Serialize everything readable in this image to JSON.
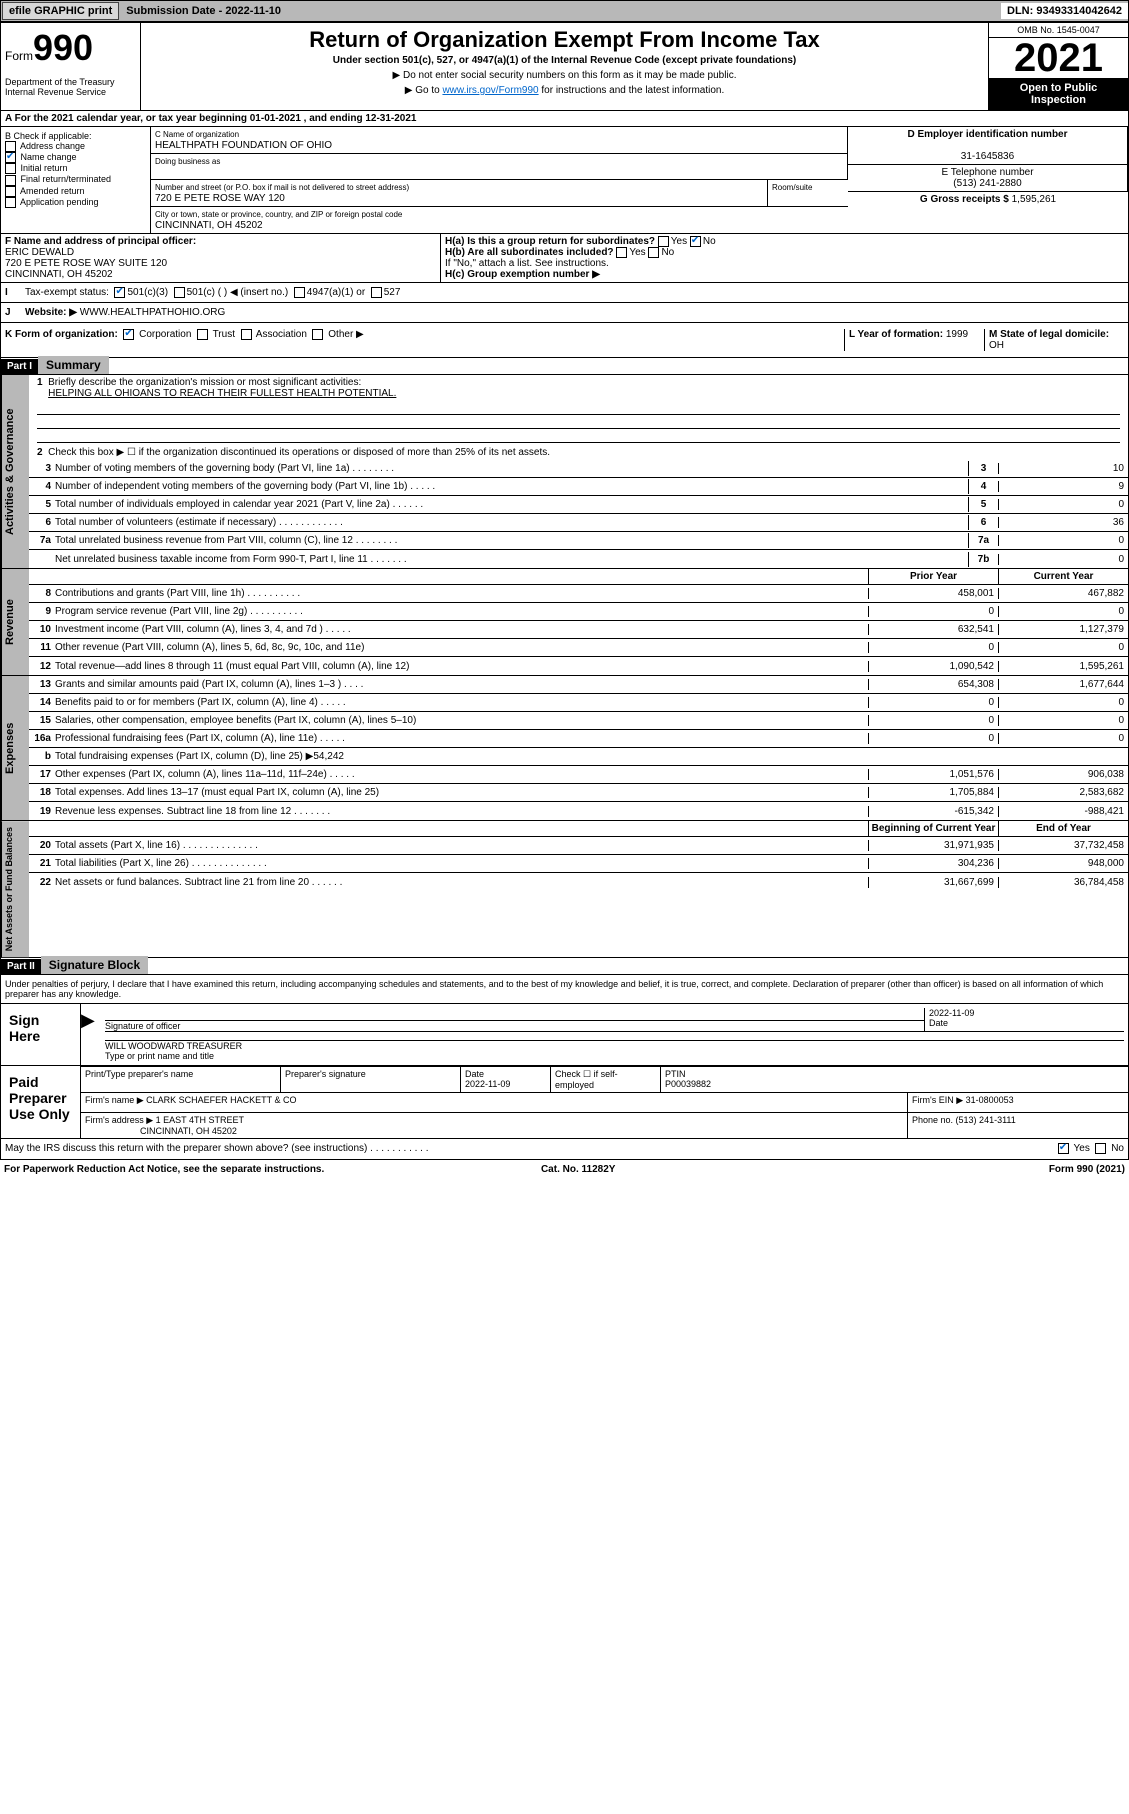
{
  "topbar": {
    "efile": "efile GRAPHIC print",
    "submission": "Submission Date - 2022-11-10",
    "dln": "DLN: 93493314042642"
  },
  "header": {
    "form_prefix": "Form",
    "form_number": "990",
    "title": "Return of Organization Exempt From Income Tax",
    "subtitle": "Under section 501(c), 527, or 4947(a)(1) of the Internal Revenue Code (except private foundations)",
    "note1": "▶ Do not enter social security numbers on this form as it may be made public.",
    "note2_pre": "▶ Go to ",
    "note2_link": "www.irs.gov/Form990",
    "note2_post": " for instructions and the latest information.",
    "dept": "Department of the Treasury\nInternal Revenue Service",
    "omb": "OMB No. 1545-0047",
    "year": "2021",
    "inspect": "Open to Public Inspection"
  },
  "period": {
    "label": "A For the 2021 calendar year, or tax year beginning ",
    "begin": "01-01-2021",
    "mid": " , and ending ",
    "end": "12-31-2021"
  },
  "sectB": {
    "label": "B Check if applicable:",
    "opts": [
      "Address change",
      "Name change",
      "Initial return",
      "Final return/terminated",
      "Amended return",
      "Application pending"
    ],
    "checked": [
      false,
      true,
      false,
      false,
      false,
      false
    ]
  },
  "sectC": {
    "name_lbl": "C Name of organization",
    "name": "HEALTHPATH FOUNDATION OF OHIO",
    "dba_lbl": "Doing business as",
    "addr_lbl": "Number and street (or P.O. box if mail is not delivered to street address)",
    "room_lbl": "Room/suite",
    "addr": "720 E PETE ROSE WAY 120",
    "city_lbl": "City or town, state or province, country, and ZIP or foreign postal code",
    "city": "CINCINNATI, OH  45202"
  },
  "sectD": {
    "ein_lbl": "D Employer identification number",
    "ein": "31-1645836",
    "tel_lbl": "E Telephone number",
    "tel": "(513) 241-2880",
    "gross_lbl": "G Gross receipts $ ",
    "gross": "1,595,261"
  },
  "sectF": {
    "lbl": "F Name and address of principal officer:",
    "name": "ERIC DEWALD",
    "addr1": "720 E PETE ROSE WAY SUITE 120",
    "addr2": "CINCINNATI, OH  45202"
  },
  "sectH": {
    "a_lbl": "H(a)  Is this a group return for subordinates?",
    "a_yes": "Yes",
    "a_no": "No",
    "b_lbl": "H(b)  Are all subordinates included?",
    "b_note": "If \"No,\" attach a list. See instructions.",
    "c_lbl": "H(c)  Group exemption number ▶"
  },
  "tax_status": {
    "lbl": "Tax-exempt status:",
    "opts": [
      "501(c)(3)",
      "501(c) (   ) ◀ (insert no.)",
      "4947(a)(1) or",
      "527"
    ]
  },
  "website": {
    "lbl": "Website: ▶ ",
    "val": "WWW.HEALTHPATHOHIO.ORG"
  },
  "orgform": {
    "lbl": "K Form of organization:",
    "opts": [
      "Corporation",
      "Trust",
      "Association",
      "Other ▶"
    ],
    "year_lbl": "L Year of formation: ",
    "year": "1999",
    "state_lbl": "M State of legal domicile: ",
    "state": "OH"
  },
  "part1": {
    "hdr": "Part I",
    "title": "Summary"
  },
  "summary": {
    "l1": "Briefly describe the organization's mission or most significant activities:",
    "mission": "HELPING ALL OHIOANS TO REACH THEIR FULLEST HEALTH POTENTIAL.",
    "l2": "Check this box ▶ ☐  if the organization discontinued its operations or disposed of more than 25% of its net assets.",
    "rows_gov": [
      {
        "n": "3",
        "t": "Number of voting members of the governing body (Part VI, line 1a)   .    .    .    .    .    .    .    .",
        "b": "3",
        "v": "10"
      },
      {
        "n": "4",
        "t": "Number of independent voting members of the governing body (Part VI, line 1b)   .    .    .    .    .",
        "b": "4",
        "v": "9"
      },
      {
        "n": "5",
        "t": "Total number of individuals employed in calendar year 2021 (Part V, line 2a)   .    .    .    .    .    .",
        "b": "5",
        "v": "0"
      },
      {
        "n": "6",
        "t": "Total number of volunteers (estimate if necessary)   .    .    .    .    .    .    .    .    .    .    .    .",
        "b": "6",
        "v": "36"
      },
      {
        "n": "7a",
        "t": "Total unrelated business revenue from Part VIII, column (C), line 12   .    .    .    .    .    .    .    .",
        "b": "7a",
        "v": "0"
      },
      {
        "n": "",
        "t": "Net unrelated business taxable income from Form 990-T, Part I, line 11   .    .    .    .    .    .    .",
        "b": "7b",
        "v": "0"
      }
    ],
    "col_prior": "Prior Year",
    "col_current": "Current Year",
    "rows_rev": [
      {
        "n": "8",
        "t": "Contributions and grants (Part VIII, line 1h)   .    .    .    .    .    .    .    .    .    .",
        "p": "458,001",
        "c": "467,882"
      },
      {
        "n": "9",
        "t": "Program service revenue (Part VIII, line 2g)   .    .    .    .    .    .    .    .    .    .",
        "p": "0",
        "c": "0"
      },
      {
        "n": "10",
        "t": "Investment income (Part VIII, column (A), lines 3, 4, and 7d )   .    .    .    .    .",
        "p": "632,541",
        "c": "1,127,379"
      },
      {
        "n": "11",
        "t": "Other revenue (Part VIII, column (A), lines 5, 6d, 8c, 9c, 10c, and 11e)",
        "p": "0",
        "c": "0"
      },
      {
        "n": "12",
        "t": "Total revenue—add lines 8 through 11 (must equal Part VIII, column (A), line 12)",
        "p": "1,090,542",
        "c": "1,595,261"
      }
    ],
    "rows_exp": [
      {
        "n": "13",
        "t": "Grants and similar amounts paid (Part IX, column (A), lines 1–3 )   .    .    .    .",
        "p": "654,308",
        "c": "1,677,644"
      },
      {
        "n": "14",
        "t": "Benefits paid to or for members (Part IX, column (A), line 4)   .    .    .    .    .",
        "p": "0",
        "c": "0"
      },
      {
        "n": "15",
        "t": "Salaries, other compensation, employee benefits (Part IX, column (A), lines 5–10)",
        "p": "0",
        "c": "0"
      },
      {
        "n": "16a",
        "t": "Professional fundraising fees (Part IX, column (A), line 11e)   .    .    .    .    .",
        "p": "0",
        "c": "0"
      },
      {
        "n": "b",
        "t": "Total fundraising expenses (Part IX, column (D), line 25) ▶54,242",
        "p": "",
        "c": "",
        "shade": true
      },
      {
        "n": "17",
        "t": "Other expenses (Part IX, column (A), lines 11a–11d, 11f–24e)   .    .    .    .    .",
        "p": "1,051,576",
        "c": "906,038"
      },
      {
        "n": "18",
        "t": "Total expenses. Add lines 13–17 (must equal Part IX, column (A), line 25)",
        "p": "1,705,884",
        "c": "2,583,682"
      },
      {
        "n": "19",
        "t": "Revenue less expenses. Subtract line 18 from line 12   .    .    .    .    .    .    .",
        "p": "-615,342",
        "c": "-988,421"
      }
    ],
    "col_begin": "Beginning of Current Year",
    "col_end": "End of Year",
    "rows_net": [
      {
        "n": "20",
        "t": "Total assets (Part X, line 16)   .    .    .    .    .    .    .    .    .    .    .    .    .    .",
        "p": "31,971,935",
        "c": "37,732,458"
      },
      {
        "n": "21",
        "t": "Total liabilities (Part X, line 26)   .    .    .    .    .    .    .    .    .    .    .    .    .    .",
        "p": "304,236",
        "c": "948,000"
      },
      {
        "n": "22",
        "t": "Net assets or fund balances. Subtract line 21 from line 20   .    .    .    .    .    .",
        "p": "31,667,699",
        "c": "36,784,458"
      }
    ],
    "vtabs": [
      "Activities & Governance",
      "Revenue",
      "Expenses",
      "Net Assets or Fund Balances"
    ]
  },
  "part2": {
    "hdr": "Part II",
    "title": "Signature Block"
  },
  "sig": {
    "decl": "Under penalties of perjury, I declare that I have examined this return, including accompanying schedules and statements, and to the best of my knowledge and belief, it is true, correct, and complete. Declaration of preparer (other than officer) is based on all information of which preparer has any knowledge.",
    "sign_here": "Sign Here",
    "sig_officer": "Signature of officer",
    "date": "Date",
    "sig_date": "2022-11-09",
    "name_title": "WILL WOODWARD  TREASURER",
    "name_lbl": "Type or print name and title",
    "paid": "Paid Preparer Use Only",
    "prep_name_lbl": "Print/Type preparer's name",
    "prep_sig_lbl": "Preparer's signature",
    "prep_date": "2022-11-09",
    "check_lbl": "Check ☐ if self-employed",
    "ptin_lbl": "PTIN",
    "ptin": "P00039882",
    "firm_name_lbl": "Firm's name    ▶ ",
    "firm_name": "CLARK SCHAEFER HACKETT & CO",
    "firm_ein_lbl": "Firm's EIN ▶ ",
    "firm_ein": "31-0800053",
    "firm_addr_lbl": "Firm's address ▶ ",
    "firm_addr": "1 EAST 4TH STREET",
    "firm_city": "CINCINNATI, OH  45202",
    "phone_lbl": "Phone no. ",
    "phone": "(513) 241-3111",
    "may_irs": "May the IRS discuss this return with the preparer shown above? (see instructions)   .    .    .    .    .    .    .    .    .    .    .",
    "yes": "Yes",
    "no": "No"
  },
  "footer": {
    "left": "For Paperwork Reduction Act Notice, see the separate instructions.",
    "mid": "Cat. No. 11282Y",
    "right": "Form 990 (2021)"
  }
}
